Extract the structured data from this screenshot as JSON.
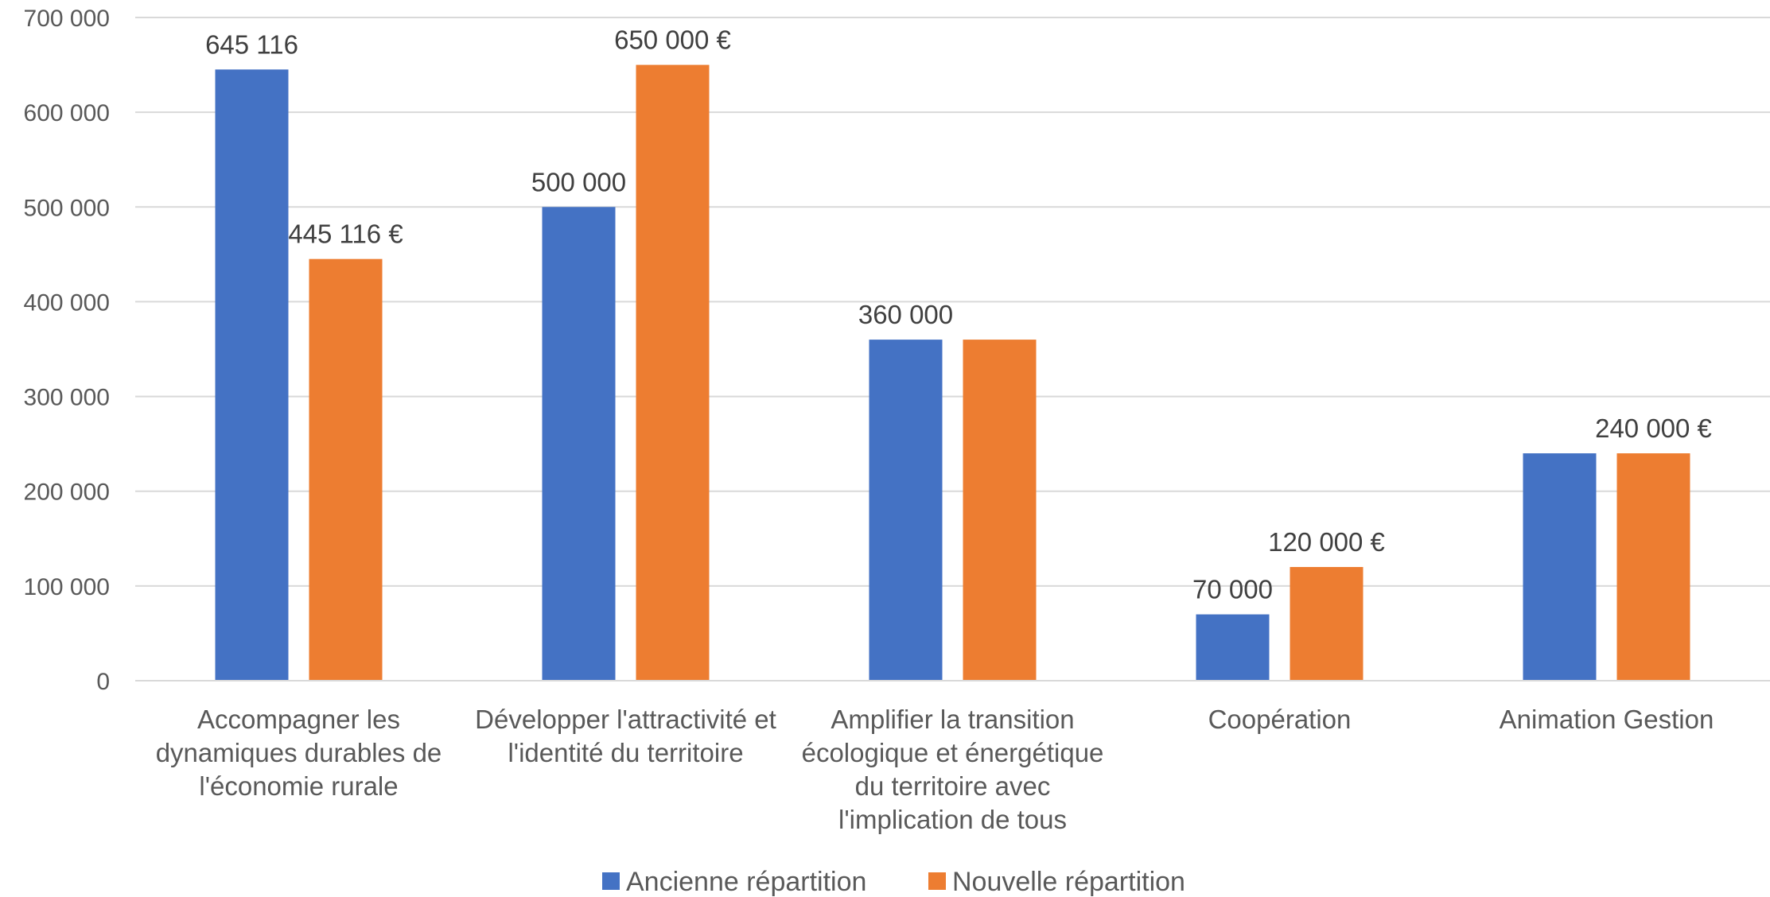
{
  "chart_data": {
    "type": "bar",
    "title": "",
    "xlabel": "",
    "ylabel": "",
    "categories": [
      [
        "Accompagner les",
        "dynamiques durables de",
        "l'économie rurale"
      ],
      [
        "Développer l'attractivité et",
        "l'identité du territoire"
      ],
      [
        "Amplifier la transition",
        "écologique et énergétique",
        "du territoire avec",
        "l'implication de tous"
      ],
      [
        "Coopération"
      ],
      [
        "Animation Gestion"
      ]
    ],
    "series": [
      {
        "name": "Ancienne répartition",
        "color": "#4472C4",
        "values": [
          645116,
          500000,
          360000,
          70000,
          240000
        ],
        "labels": [
          "645 116",
          "500 000",
          "360 000",
          "70 000",
          ""
        ]
      },
      {
        "name": "Nouvelle répartition",
        "color": "#ED7D31",
        "values": [
          445116,
          650000,
          360000,
          120000,
          240000
        ],
        "labels": [
          "445 116 €",
          "650 000 €",
          "",
          "120 000 €",
          "240 000 €"
        ]
      }
    ],
    "ylim": [
      0,
      700000
    ],
    "yticks": [
      0,
      100000,
      200000,
      300000,
      400000,
      500000,
      600000,
      700000
    ],
    "ytick_labels": [
      "0",
      "100 000",
      "200 000",
      "300 000",
      "400 000",
      "500 000",
      "600 000",
      "700 000"
    ],
    "grid": true,
    "legend_position": "bottom"
  }
}
